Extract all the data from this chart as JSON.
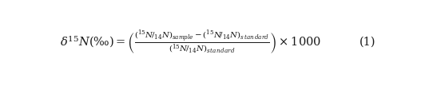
{
  "equation_number": "(1)",
  "background_color": "#ffffff",
  "text_color": "#1a1a1a",
  "fontsize": 10.5
}
